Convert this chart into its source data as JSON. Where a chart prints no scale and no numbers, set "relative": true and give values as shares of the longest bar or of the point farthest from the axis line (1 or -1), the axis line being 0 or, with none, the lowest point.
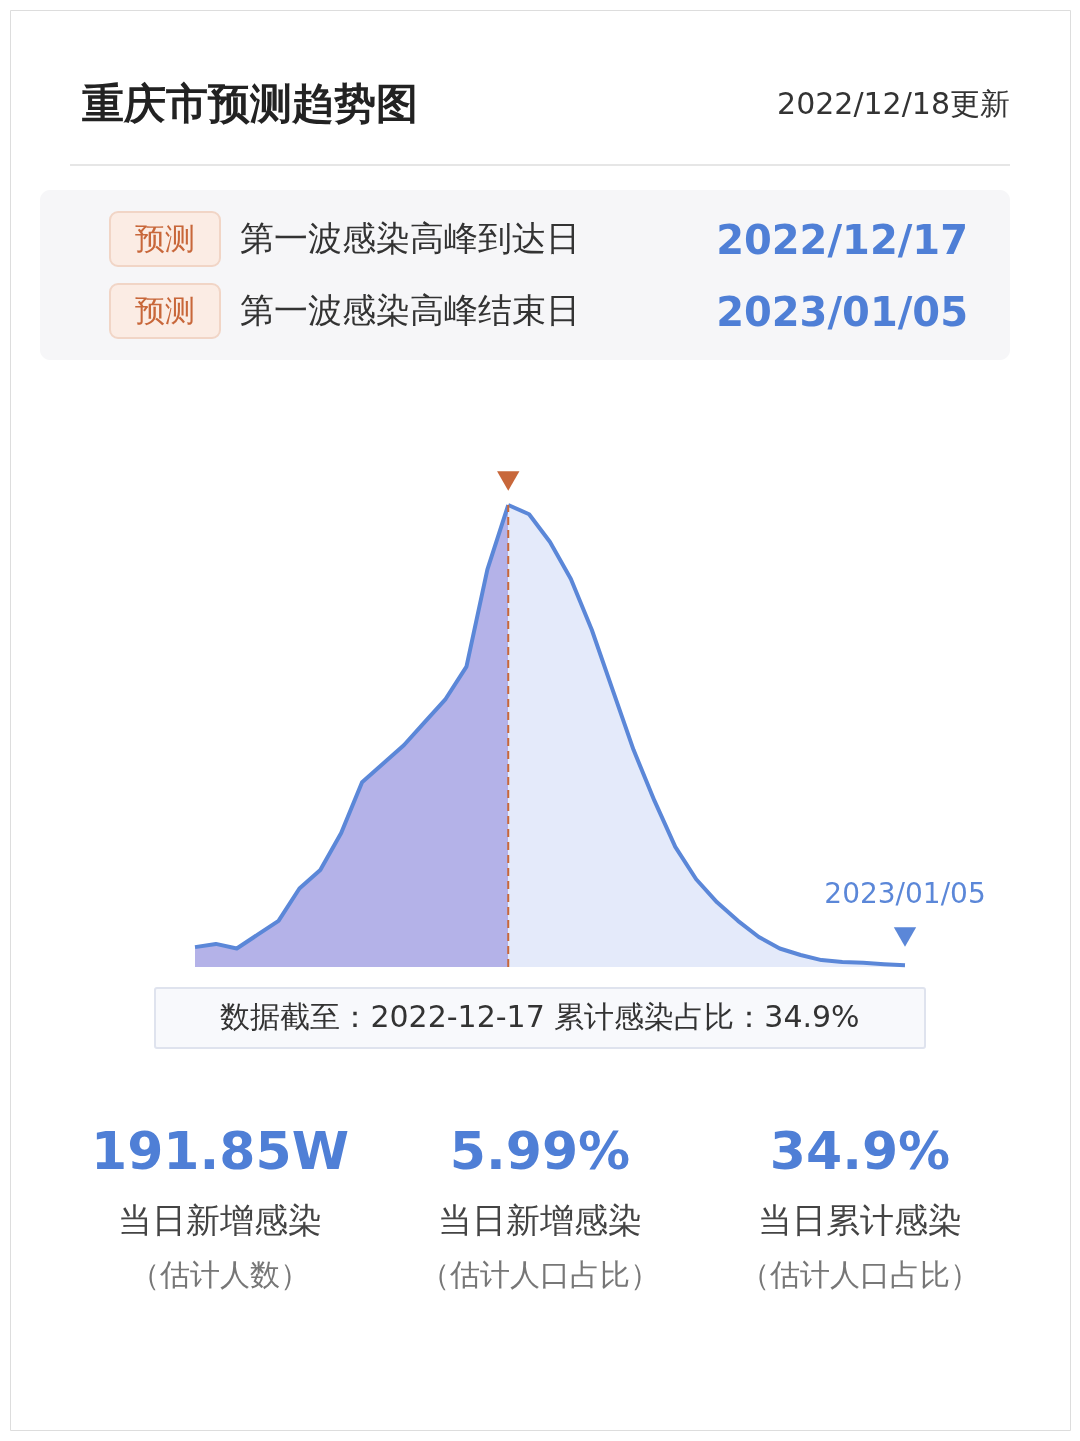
{
  "chart_data": {
    "type": "area",
    "relative": true,
    "title": "重庆市预测趋势图",
    "subtitle": "2022/12/18更新",
    "categories": [
      null,
      null,
      null,
      null,
      null,
      null,
      null,
      null,
      null,
      null,
      null,
      null,
      null,
      null,
      null,
      null,
      null,
      null,
      null,
      null,
      null,
      null,
      null,
      null,
      null,
      null,
      null,
      null,
      null,
      null,
      null,
      null,
      null,
      null,
      null
    ],
    "series": [
      {
        "color": "#b4b2e8",
        "values": [
          0.043,
          0.05,
          0.04,
          0.07,
          0.1,
          0.17,
          0.21,
          0.29,
          0.4,
          0.44,
          0.48,
          0.53,
          0.58,
          0.65,
          0.86,
          1.0,
          null,
          null,
          null,
          null,
          null,
          null,
          null,
          null,
          null,
          null,
          null,
          null,
          null,
          null,
          null,
          null,
          null,
          null,
          null
        ]
      },
      {
        "color": "#e4eafa",
        "values": [
          null,
          null,
          null,
          null,
          null,
          null,
          null,
          null,
          null,
          null,
          null,
          null,
          null,
          null,
          null,
          1.0,
          0.98,
          0.92,
          0.84,
          0.73,
          0.6,
          0.47,
          0.36,
          0.26,
          0.19,
          0.14,
          0.1,
          0.065,
          0.04,
          0.026,
          0.015,
          0.011,
          0.009,
          0.006,
          0.004
        ]
      }
    ],
    "ref_lines": [
      {
        "axis": "x",
        "color": "#c8673a",
        "line_style": "dashed"
      }
    ],
    "annotations": [
      "预测",
      "第一波感染高峰到达日",
      "2022/12/17",
      "预测",
      "第一波感染高峰结束日",
      "2023/01/05",
      "数据截至：2022-12-17   累计感染占比：34.9%",
      "191.85W",
      "当日新增感染",
      "（估计人数）",
      "5.99%",
      "当日新增感染",
      "（估计人口占比）",
      "34.9%",
      "当日累计感染",
      "（估计人口占比）",
      "2023/01/05"
    ]
  }
}
